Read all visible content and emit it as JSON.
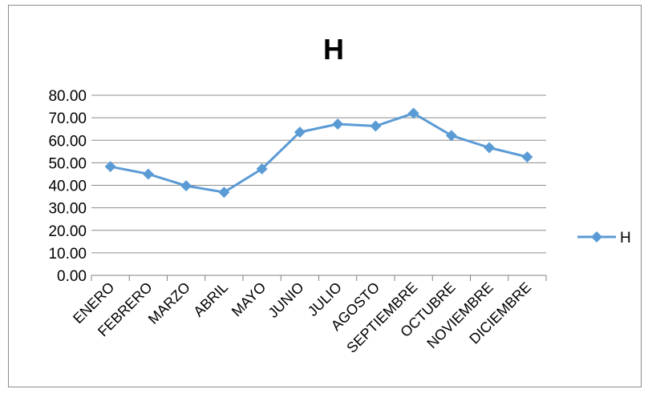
{
  "chart_data": {
    "type": "line",
    "title": "H",
    "xlabel": "",
    "ylabel": "",
    "categories": [
      "ENERO",
      "FEBRERO",
      "MARZO",
      "ABRIL",
      "MAYO",
      "JUNIO",
      "JULIO",
      "AGOSTO",
      "SEPTIEMBRE",
      "OCTUBRE",
      "NOVIEMBRE",
      "DICIEMBRE"
    ],
    "series": [
      {
        "name": "H",
        "values": [
          48.3,
          45.0,
          39.8,
          36.9,
          47.3,
          63.6,
          67.2,
          66.3,
          72.0,
          62.1,
          56.7,
          52.6
        ],
        "color": "#5b9bd5",
        "marker": "diamond"
      }
    ],
    "ylim": [
      0,
      80
    ],
    "yticks": [
      "0.00",
      "10.00",
      "20.00",
      "30.00",
      "40.00",
      "50.00",
      "60.00",
      "70.00",
      "80.00"
    ],
    "grid": "horizontal",
    "legend": "right"
  }
}
